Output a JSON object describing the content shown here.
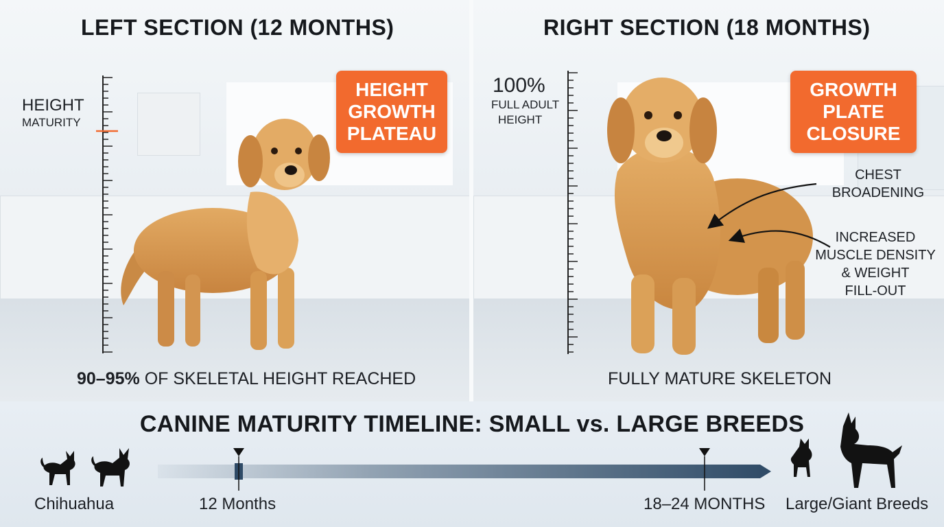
{
  "left": {
    "title": "LEFT SECTION (12 MONTHS)",
    "ruler_label_line1": "HEIGHT",
    "ruler_label_line2": "MATURITY",
    "badge_lines": [
      "HEIGHT",
      "GROWTH",
      "PLATEAU"
    ],
    "caption_bold": "90–95%",
    "caption_rest": " OF SKELETAL HEIGHT REACHED",
    "marker_color": "#f26a2e"
  },
  "right": {
    "title": "RIGHT SECTION (18 MONTHS)",
    "ruler_label_big": "100%",
    "ruler_label_line2": "FULL ADULT",
    "ruler_label_line3": "HEIGHT",
    "badge_lines": [
      "GROWTH",
      "PLATE",
      "CLOSURE"
    ],
    "annotation_1": [
      "CHEST",
      "BROADENING"
    ],
    "annotation_2": [
      "INCREASED",
      "MUSCLE DENSITY",
      "& WEIGHT",
      "FILL-OUT"
    ],
    "caption": "FULLY MATURE SKELETON"
  },
  "timeline": {
    "title": "CANINE MATURITY TIMELINE: SMALL vs. LARGE BREEDS",
    "small_breed_label": "Chihuahua",
    "marker_1_label": "12 Months",
    "marker_2_label": "18–24 MONTHS",
    "large_breed_label": "Large/Giant Breeds",
    "bar_color": "#2e4a66"
  },
  "colors": {
    "badge": "#f26a2e",
    "dog_coat": "#d69a52",
    "silhouette": "#121212"
  },
  "icons": {
    "dog_12_months": "golden-retriever-standing",
    "dog_18_months": "golden-retriever-adult",
    "small_breed": "chihuahua-silhouette",
    "large_breed": "great-dane-silhouette"
  }
}
